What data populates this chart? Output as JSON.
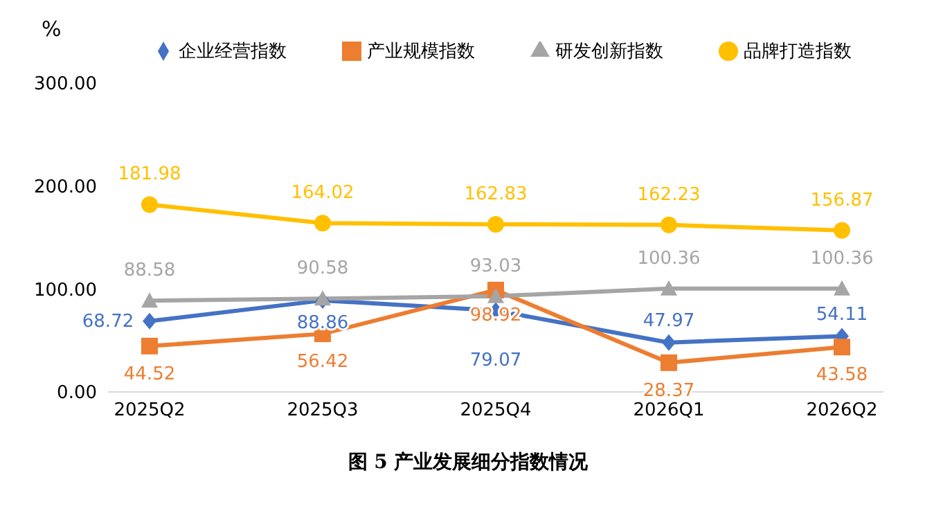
{
  "chart_data": {
    "type": "line",
    "title": "图 5 产业发展细分指数情况",
    "ylabel": "%",
    "categories": [
      "2025Q2",
      "2025Q3",
      "2025Q4",
      "2026Q1",
      "2026Q2"
    ],
    "series": [
      {
        "name": "企业经营指数",
        "color": "#4472c4",
        "marker": "diamond",
        "values": [
          68.72,
          88.86,
          79.07,
          47.97,
          54.11
        ]
      },
      {
        "name": "产业规模指数",
        "color": "#ed7d31",
        "marker": "square",
        "values": [
          44.52,
          56.42,
          98.92,
          28.37,
          43.58
        ]
      },
      {
        "name": "研发创新指数",
        "color": "#a5a5a5",
        "marker": "triangle",
        "values": [
          88.58,
          90.58,
          93.03,
          100.36,
          100.36
        ]
      },
      {
        "name": "品牌打造指数",
        "color": "#ffc000",
        "marker": "circle",
        "values": [
          181.98,
          164.02,
          162.83,
          162.23,
          156.87
        ]
      }
    ],
    "ylim": [
      0,
      300
    ],
    "yticks": [
      {
        "value": 0,
        "label": "0.00"
      },
      {
        "value": 100,
        "label": "100.00"
      },
      {
        "value": 200,
        "label": "200.00"
      },
      {
        "value": 300,
        "label": "300.00"
      }
    ],
    "grid": false,
    "legend": "top",
    "data_labels": true
  }
}
